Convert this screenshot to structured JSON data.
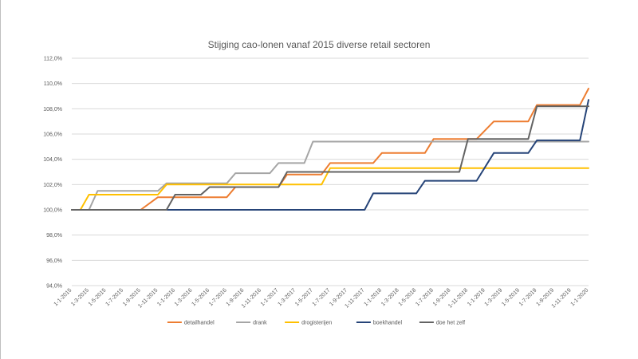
{
  "chart_data": {
    "type": "line",
    "title": "Stijging cao-lonen vanaf 2015 diverse retail sectoren",
    "ylim": [
      94,
      112
    ],
    "ytick_values": [
      94,
      96,
      98,
      100,
      102,
      104,
      106,
      108,
      110,
      112
    ],
    "ytick_labels": [
      "94,0%",
      "96,0%",
      "98,0%",
      "100,0%",
      "102,0%",
      "104,0%",
      "106,0%",
      "108,0%",
      "110,0%",
      "112,0%"
    ],
    "x_labels": [
      "1-1-2015",
      "1-3-2015",
      "1-5-2015",
      "1-7-2015",
      "1-9-2015",
      "1-11-2015",
      "1-1-2016",
      "1-3-2016",
      "1-5-2016",
      "1-7-2016",
      "1-9-2016",
      "1-11-2016",
      "1-1-2017",
      "1-3-2017",
      "1-5-2017",
      "1-7-2017",
      "1-9-2017",
      "1-11-2017",
      "1-1-2018",
      "1-3-2018",
      "1-5-2018",
      "1-7-2018",
      "1-9-2018",
      "1-11-2018",
      "1-1-2019",
      "1-3-2019",
      "1-5-2019",
      "1-7-2019",
      "1-9-2019",
      "1-11-2019",
      "1-1-2020"
    ],
    "grid": true,
    "legend_position": "bottom",
    "series": [
      {
        "name": "detailhandel",
        "color": "#ED7D31",
        "points": [
          [
            "1-1-2015",
            100.0
          ],
          [
            "1-9-2015",
            100.0
          ],
          [
            "1-11-2015",
            101.0
          ],
          [
            "1-7-2016",
            101.0
          ],
          [
            "1-8-2016",
            101.8
          ],
          [
            "1-1-2017",
            101.8
          ],
          [
            "1-2-2017",
            102.8
          ],
          [
            "1-6-2017",
            102.8
          ],
          [
            "1-7-2017",
            103.7
          ],
          [
            "1-12-2017",
            103.7
          ],
          [
            "1-1-2018",
            104.5
          ],
          [
            "1-6-2018",
            104.5
          ],
          [
            "1-7-2018",
            105.6
          ],
          [
            "1-12-2018",
            105.6
          ],
          [
            "1-2-2019",
            107.0
          ],
          [
            "1-6-2019",
            107.0
          ],
          [
            "1-7-2019",
            108.3
          ],
          [
            "1-12-2019",
            108.3
          ],
          [
            "1-1-2020",
            109.6
          ]
        ]
      },
      {
        "name": "drank",
        "color": "#A5A5A5",
        "points": [
          [
            "1-1-2015",
            100.0
          ],
          [
            "1-3-2015",
            100.0
          ],
          [
            "1-4-2015",
            101.5
          ],
          [
            "1-11-2015",
            101.5
          ],
          [
            "1-12-2015",
            102.1
          ],
          [
            "1-7-2016",
            102.1
          ],
          [
            "1-8-2016",
            102.9
          ],
          [
            "1-12-2016",
            102.9
          ],
          [
            "1-1-2017",
            103.7
          ],
          [
            "1-4-2017",
            103.7
          ],
          [
            "1-5-2017",
            105.4
          ],
          [
            "1-1-2020",
            105.4
          ]
        ]
      },
      {
        "name": "drogisterijen",
        "color": "#FFC000",
        "points": [
          [
            "1-1-2015",
            100.0
          ],
          [
            "1-2-2015",
            100.0
          ],
          [
            "1-3-2015",
            101.2
          ],
          [
            "1-11-2015",
            101.2
          ],
          [
            "1-12-2015",
            102.0
          ],
          [
            "1-6-2017",
            102.0
          ],
          [
            "1-7-2017",
            103.3
          ],
          [
            "1-1-2020",
            103.3
          ]
        ]
      },
      {
        "name": "boekhandel",
        "color": "#264478",
        "points": [
          [
            "1-1-2015",
            100.0
          ],
          [
            "1-11-2017",
            100.0
          ],
          [
            "1-12-2017",
            101.3
          ],
          [
            "1-5-2018",
            101.3
          ],
          [
            "1-6-2018",
            102.3
          ],
          [
            "1-12-2018",
            102.3
          ],
          [
            "1-2-2019",
            104.5
          ],
          [
            "1-6-2019",
            104.5
          ],
          [
            "1-7-2019",
            105.5
          ],
          [
            "1-12-2019",
            105.5
          ],
          [
            "1-1-2020",
            108.7
          ]
        ]
      },
      {
        "name": "doe het zelf",
        "color": "#636363",
        "points": [
          [
            "1-1-2015",
            100.0
          ],
          [
            "1-12-2015",
            100.0
          ],
          [
            "1-1-2016",
            101.2
          ],
          [
            "1-4-2016",
            101.2
          ],
          [
            "1-5-2016",
            101.8
          ],
          [
            "1-1-2017",
            101.8
          ],
          [
            "1-2-2017",
            103.0
          ],
          [
            "1-10-2018",
            103.0
          ],
          [
            "1-11-2018",
            105.6
          ],
          [
            "1-6-2019",
            105.6
          ],
          [
            "1-7-2019",
            108.2
          ],
          [
            "1-1-2020",
            108.2
          ]
        ]
      }
    ]
  }
}
